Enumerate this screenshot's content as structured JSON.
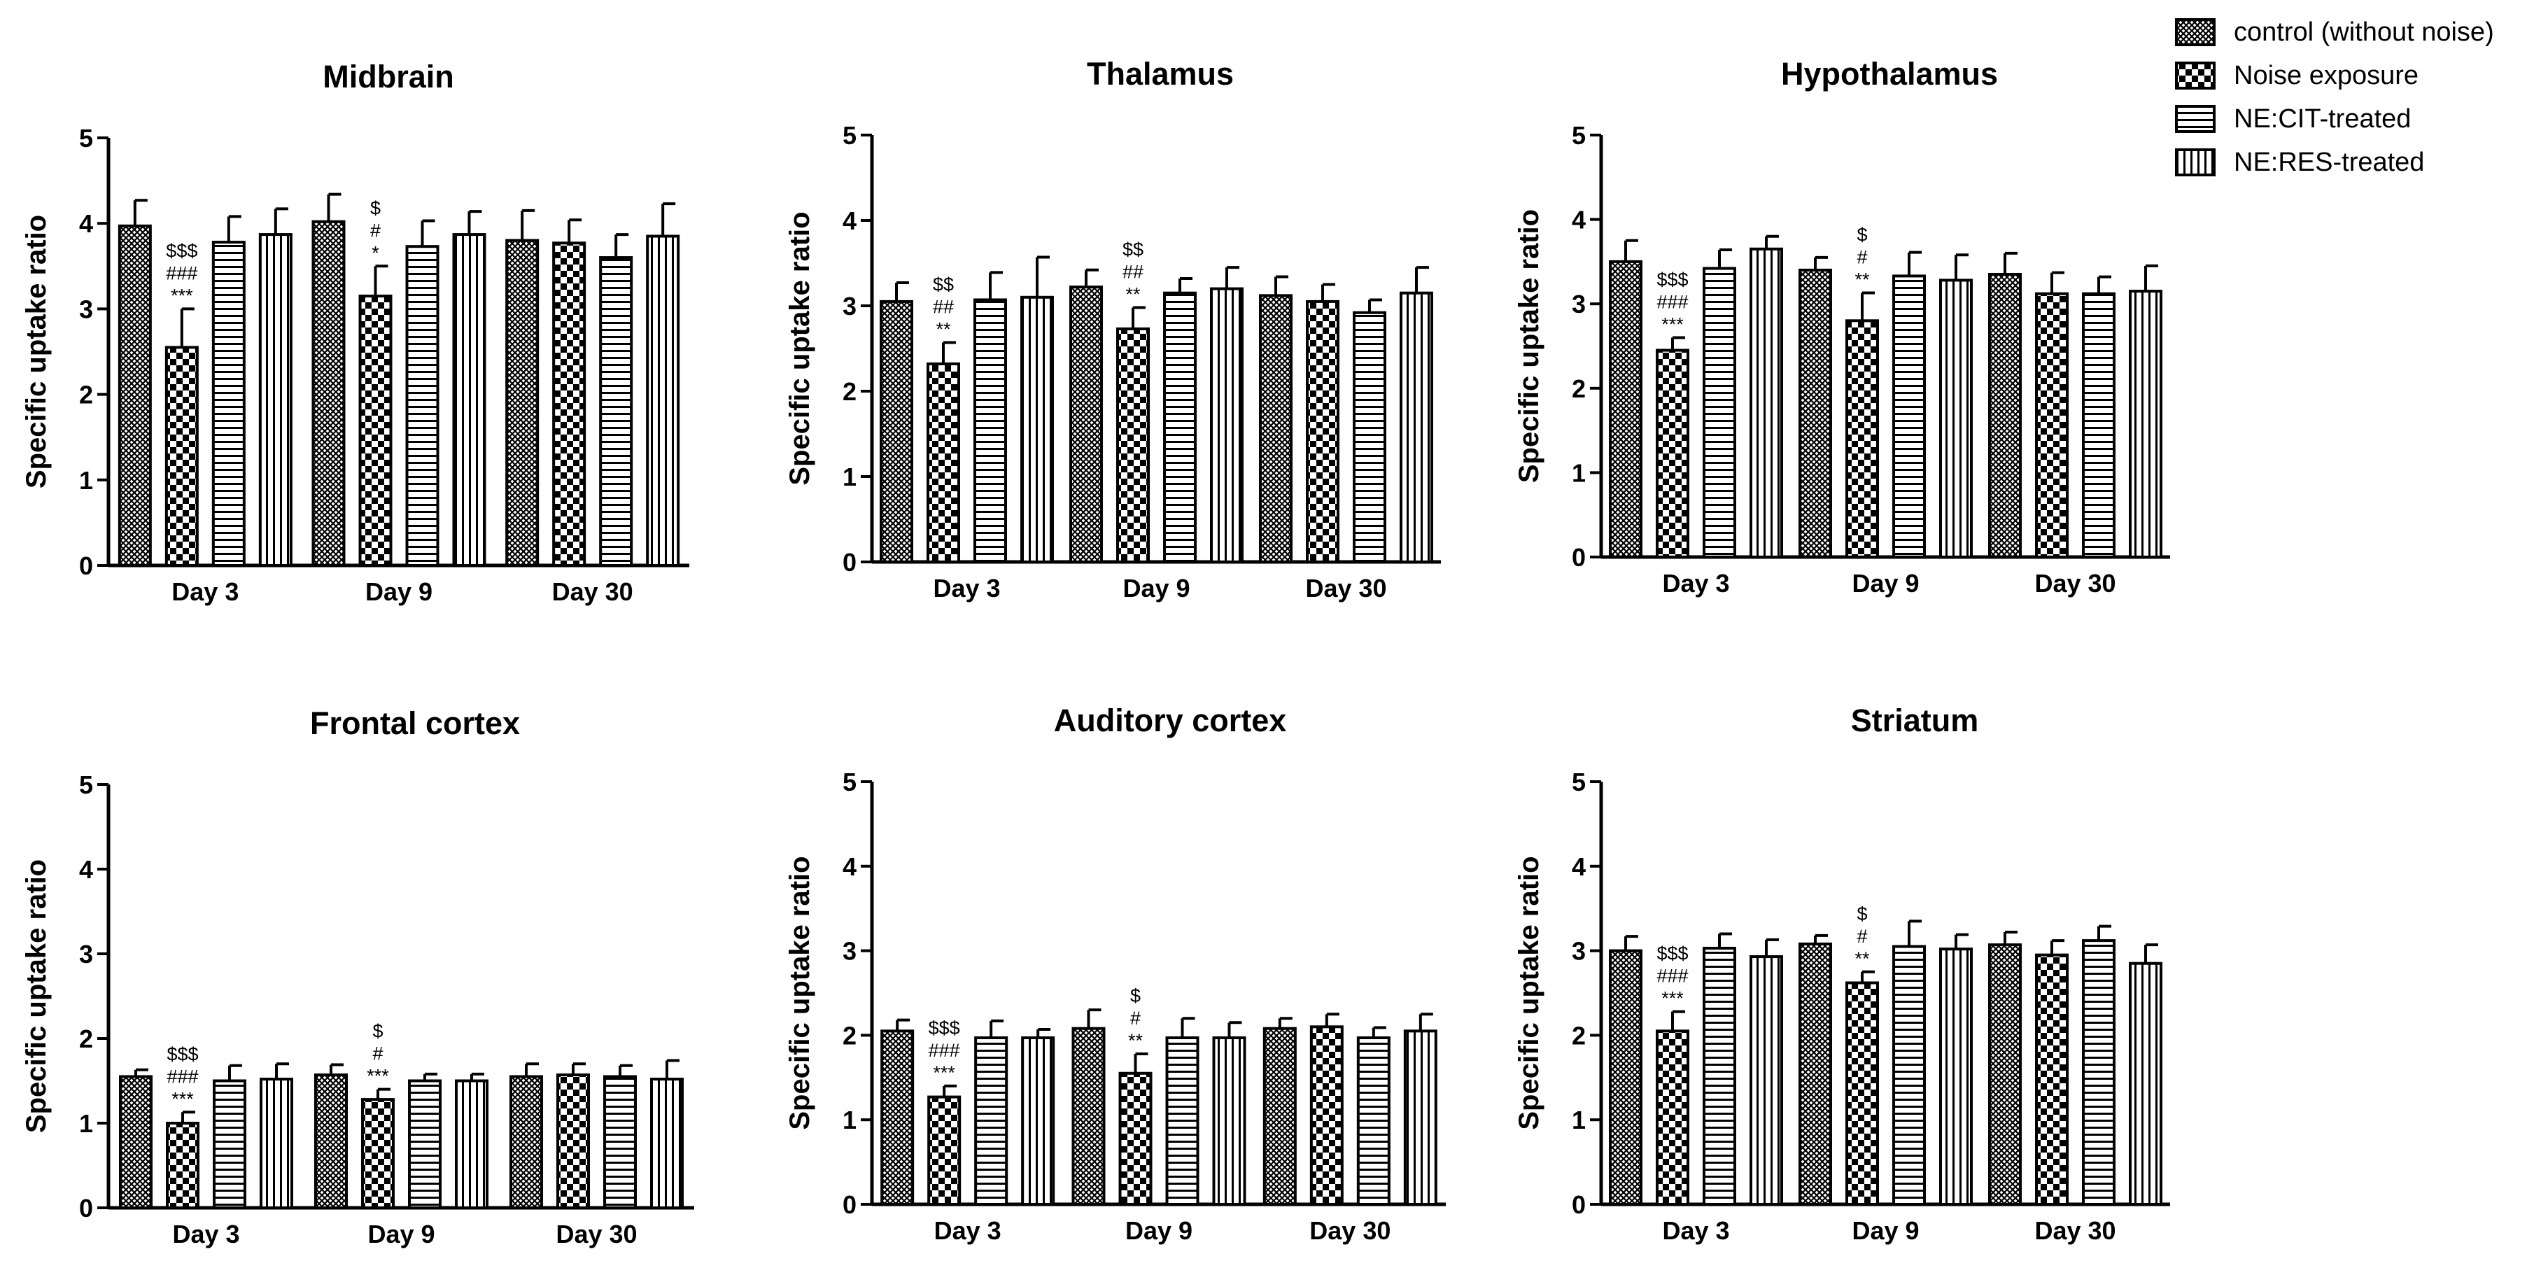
{
  "legend": [
    {
      "label": "control (without noise)",
      "pattern": "crosshatch"
    },
    {
      "label": "Noise exposure",
      "pattern": "checker"
    },
    {
      "label": "NE:CIT-treated",
      "pattern": "hstripes"
    },
    {
      "label": "NE:RES-treated",
      "pattern": "vstripes"
    }
  ],
  "colors": {
    "ink": "#000000",
    "background": "#ffffff"
  },
  "chart_data": [
    {
      "type": "bar",
      "title": "Midbrain",
      "ylabel": "Specific uptake ratio",
      "xlabel": "",
      "ylim": [
        0,
        5
      ],
      "yticks": [
        "0",
        "1",
        "2",
        "3",
        "4",
        "5"
      ],
      "categories": [
        "Day 3",
        "Day 9",
        "Day 30"
      ],
      "series": [
        {
          "name": "control (without noise)",
          "values": [
            3.97,
            4.02,
            3.8
          ],
          "errors": [
            0.3,
            0.32,
            0.35
          ]
        },
        {
          "name": "Noise exposure",
          "values": [
            2.55,
            3.15,
            3.77
          ],
          "errors": [
            0.45,
            0.35,
            0.27
          ]
        },
        {
          "name": "NE:CIT-treated",
          "values": [
            3.78,
            3.73,
            3.6
          ],
          "errors": [
            0.3,
            0.3,
            0.27
          ]
        },
        {
          "name": "NE:RES-treated",
          "values": [
            3.87,
            3.87,
            3.85
          ],
          "errors": [
            0.3,
            0.27,
            0.38
          ]
        }
      ],
      "annotations": [
        {
          "category": "Day 3",
          "lines": [
            "$$$",
            "###",
            "***"
          ]
        },
        {
          "category": "Day 9",
          "lines": [
            "$",
            "#",
            "*"
          ]
        }
      ]
    },
    {
      "type": "bar",
      "title": "Thalamus",
      "ylabel": "Specific uptake ratio",
      "xlabel": "",
      "ylim": [
        0,
        5
      ],
      "yticks": [
        "0",
        "1",
        "2",
        "3",
        "4",
        "5"
      ],
      "categories": [
        "Day 3",
        "Day 9",
        "Day 30"
      ],
      "series": [
        {
          "name": "control (without noise)",
          "values": [
            3.05,
            3.22,
            3.12
          ],
          "errors": [
            0.22,
            0.2,
            0.22
          ]
        },
        {
          "name": "Noise exposure",
          "values": [
            2.32,
            2.73,
            3.05
          ],
          "errors": [
            0.25,
            0.25,
            0.2
          ]
        },
        {
          "name": "NE:CIT-treated",
          "values": [
            3.07,
            3.15,
            2.92
          ],
          "errors": [
            0.32,
            0.17,
            0.15
          ]
        },
        {
          "name": "NE:RES-treated",
          "values": [
            3.1,
            3.2,
            3.15
          ],
          "errors": [
            0.47,
            0.25,
            0.3
          ]
        }
      ],
      "annotations": [
        {
          "category": "Day 3",
          "lines": [
            "$$",
            "##",
            "**"
          ]
        },
        {
          "category": "Day 9",
          "lines": [
            "$$",
            "##",
            "**"
          ]
        }
      ]
    },
    {
      "type": "bar",
      "title": "Hypothalamus",
      "ylabel": "Specific uptake ratio",
      "xlabel": "",
      "ylim": [
        0,
        5
      ],
      "yticks": [
        "0",
        "1",
        "2",
        "3",
        "4",
        "5"
      ],
      "categories": [
        "Day 3",
        "Day 9",
        "Day 30"
      ],
      "series": [
        {
          "name": "control (without noise)",
          "values": [
            3.5,
            3.4,
            3.35
          ],
          "errors": [
            0.25,
            0.15,
            0.25
          ]
        },
        {
          "name": "Noise exposure",
          "values": [
            2.45,
            2.8,
            3.12
          ],
          "errors": [
            0.15,
            0.33,
            0.25
          ]
        },
        {
          "name": "NE:CIT-treated",
          "values": [
            3.42,
            3.33,
            3.12
          ],
          "errors": [
            0.22,
            0.28,
            0.2
          ]
        },
        {
          "name": "NE:RES-treated",
          "values": [
            3.65,
            3.28,
            3.15
          ],
          "errors": [
            0.15,
            0.3,
            0.3
          ]
        }
      ],
      "annotations": [
        {
          "category": "Day 3",
          "lines": [
            "$$$",
            "###",
            "***"
          ]
        },
        {
          "category": "Day 9",
          "lines": [
            "$",
            "#",
            "**"
          ]
        }
      ]
    },
    {
      "type": "bar",
      "title": "Frontal cortex",
      "ylabel": "Specific uptake ratio",
      "xlabel": "",
      "ylim": [
        0,
        5
      ],
      "yticks": [
        "0",
        "1",
        "2",
        "3",
        "4",
        "5"
      ],
      "categories": [
        "Day 3",
        "Day 9",
        "Day 30"
      ],
      "series": [
        {
          "name": "control (without noise)",
          "values": [
            1.55,
            1.57,
            1.55
          ],
          "errors": [
            0.08,
            0.12,
            0.15
          ]
        },
        {
          "name": "Noise exposure",
          "values": [
            1.0,
            1.28,
            1.57
          ],
          "errors": [
            0.13,
            0.12,
            0.13
          ]
        },
        {
          "name": "NE:CIT-treated",
          "values": [
            1.5,
            1.5,
            1.55
          ],
          "errors": [
            0.18,
            0.08,
            0.13
          ]
        },
        {
          "name": "NE:RES-treated",
          "values": [
            1.52,
            1.5,
            1.52
          ],
          "errors": [
            0.18,
            0.08,
            0.22
          ]
        }
      ],
      "annotations": [
        {
          "category": "Day 3",
          "lines": [
            "$$$",
            "###",
            "***"
          ]
        },
        {
          "category": "Day 9",
          "lines": [
            "$",
            "#",
            "***"
          ]
        }
      ]
    },
    {
      "type": "bar",
      "title": "Auditory cortex",
      "ylabel": "Specific uptake ratio",
      "xlabel": "",
      "ylim": [
        0,
        5
      ],
      "yticks": [
        "0",
        "1",
        "2",
        "3",
        "4",
        "5"
      ],
      "categories": [
        "Day 3",
        "Day 9",
        "Day 30"
      ],
      "series": [
        {
          "name": "control (without noise)",
          "values": [
            2.05,
            2.08,
            2.08
          ],
          "errors": [
            0.13,
            0.22,
            0.12
          ]
        },
        {
          "name": "Noise exposure",
          "values": [
            1.27,
            1.55,
            2.1
          ],
          "errors": [
            0.13,
            0.23,
            0.15
          ]
        },
        {
          "name": "NE:CIT-treated",
          "values": [
            1.97,
            1.97,
            1.97
          ],
          "errors": [
            0.2,
            0.23,
            0.12
          ]
        },
        {
          "name": "NE:RES-treated",
          "values": [
            1.97,
            1.97,
            2.05
          ],
          "errors": [
            0.1,
            0.18,
            0.2
          ]
        }
      ],
      "annotations": [
        {
          "category": "Day 3",
          "lines": [
            "$$$",
            "###",
            "***"
          ]
        },
        {
          "category": "Day 9",
          "lines": [
            "$",
            "#",
            "**"
          ]
        }
      ]
    },
    {
      "type": "bar",
      "title": "Striatum",
      "ylabel": "Specific uptake ratio",
      "xlabel": "",
      "ylim": [
        0,
        5
      ],
      "yticks": [
        "0",
        "1",
        "2",
        "3",
        "4",
        "5"
      ],
      "categories": [
        "Day 3",
        "Day 9",
        "Day 30"
      ],
      "series": [
        {
          "name": "control (without noise)",
          "values": [
            3.0,
            3.08,
            3.07
          ],
          "errors": [
            0.17,
            0.1,
            0.15
          ]
        },
        {
          "name": "Noise exposure",
          "values": [
            2.05,
            2.62,
            2.95
          ],
          "errors": [
            0.23,
            0.13,
            0.17
          ]
        },
        {
          "name": "NE:CIT-treated",
          "values": [
            3.03,
            3.05,
            3.12
          ],
          "errors": [
            0.17,
            0.3,
            0.17
          ]
        },
        {
          "name": "NE:RES-treated",
          "values": [
            2.93,
            3.02,
            2.85
          ],
          "errors": [
            0.2,
            0.17,
            0.22
          ]
        }
      ],
      "annotations": [
        {
          "category": "Day 3",
          "lines": [
            "$$$",
            "###",
            "***"
          ]
        },
        {
          "category": "Day 9",
          "lines": [
            "$",
            "#",
            "**"
          ]
        }
      ]
    }
  ]
}
